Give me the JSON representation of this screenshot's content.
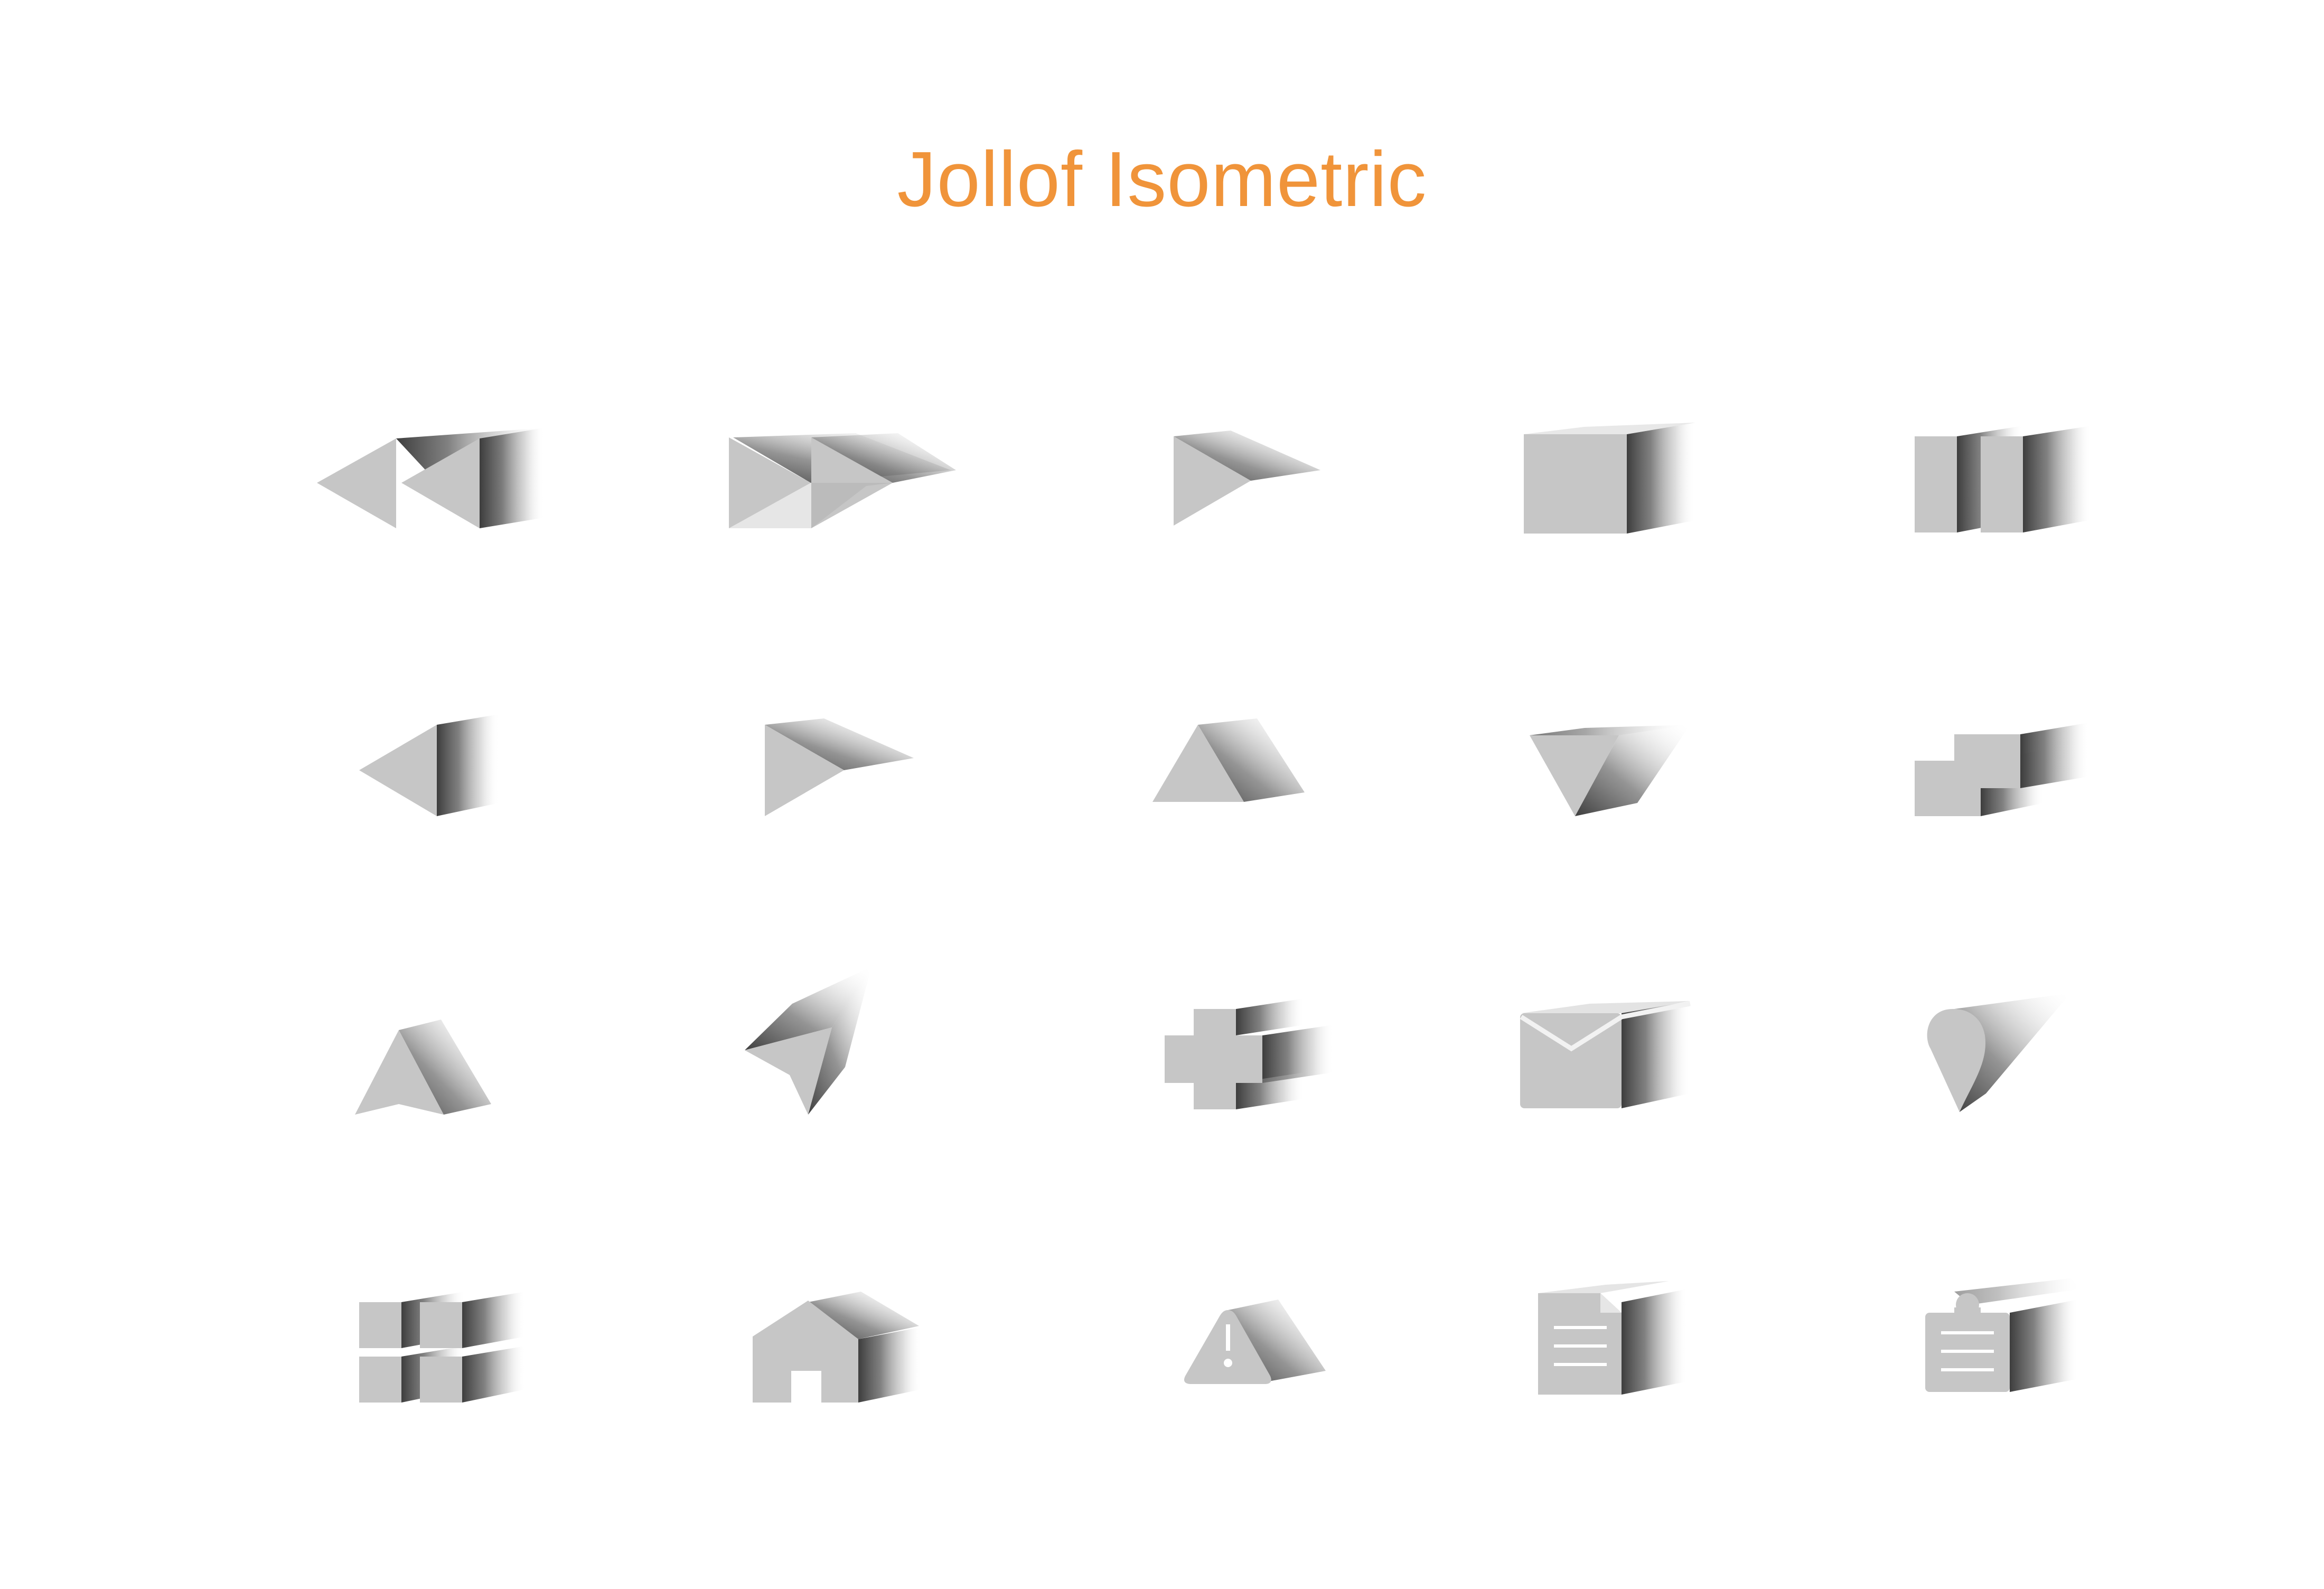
{
  "page": {
    "title": "Jollof Isometric"
  },
  "colors": {
    "title": "#F0943A",
    "icon_face": "#C6C6C6",
    "icon_side": "#4A4A4A",
    "background": "#FFFFFF"
  },
  "icons": [
    {
      "row": 1,
      "col": 1,
      "name": "rewind-icon"
    },
    {
      "row": 1,
      "col": 2,
      "name": "fast-forward-icon"
    },
    {
      "row": 1,
      "col": 3,
      "name": "play-icon"
    },
    {
      "row": 1,
      "col": 4,
      "name": "stop-icon"
    },
    {
      "row": 1,
      "col": 5,
      "name": "pause-icon"
    },
    {
      "row": 2,
      "col": 1,
      "name": "arrow-left-icon"
    },
    {
      "row": 2,
      "col": 2,
      "name": "arrow-right-icon"
    },
    {
      "row": 2,
      "col": 3,
      "name": "arrow-up-icon"
    },
    {
      "row": 2,
      "col": 4,
      "name": "arrow-down-icon"
    },
    {
      "row": 2,
      "col": 5,
      "name": "duplicate-icon"
    },
    {
      "row": 3,
      "col": 1,
      "name": "navigation-icon"
    },
    {
      "row": 3,
      "col": 2,
      "name": "send-icon"
    },
    {
      "row": 3,
      "col": 3,
      "name": "plus-icon"
    },
    {
      "row": 3,
      "col": 4,
      "name": "mail-icon"
    },
    {
      "row": 3,
      "col": 5,
      "name": "map-pin-icon"
    },
    {
      "row": 4,
      "col": 1,
      "name": "grid-icon"
    },
    {
      "row": 4,
      "col": 2,
      "name": "home-icon"
    },
    {
      "row": 4,
      "col": 3,
      "name": "warning-icon"
    },
    {
      "row": 4,
      "col": 4,
      "name": "document-icon"
    },
    {
      "row": 4,
      "col": 5,
      "name": "clipboard-icon"
    }
  ]
}
